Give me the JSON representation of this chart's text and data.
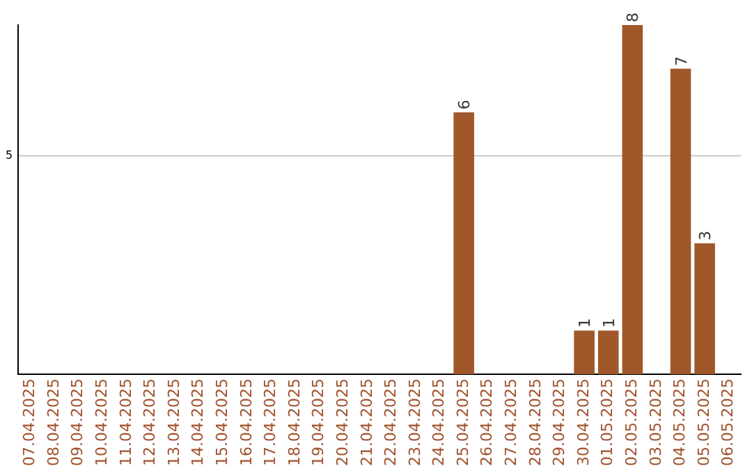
{
  "chart_data": {
    "type": "bar",
    "categories": [
      "07.04.2025",
      "08.04.2025",
      "09.04.2025",
      "10.04.2025",
      "11.04.2025",
      "12.04.2025",
      "13.04.2025",
      "14.04.2025",
      "15.04.2025",
      "16.04.2025",
      "17.04.2025",
      "18.04.2025",
      "19.04.2025",
      "20.04.2025",
      "21.04.2025",
      "22.04.2025",
      "23.04.2025",
      "24.04.2025",
      "25.04.2025",
      "26.04.2025",
      "27.04.2025",
      "28.04.2025",
      "29.04.2025",
      "30.04.2025",
      "01.05.2025",
      "02.05.2025",
      "03.05.2025",
      "04.05.2025",
      "05.05.2025",
      "06.05.2025"
    ],
    "values": [
      null,
      null,
      null,
      null,
      null,
      null,
      null,
      null,
      null,
      null,
      null,
      null,
      null,
      null,
      null,
      null,
      null,
      null,
      6,
      null,
      null,
      null,
      null,
      1,
      1,
      8,
      null,
      7,
      3,
      null
    ],
    "color": "#a0582a",
    "ylim": [
      0,
      8
    ],
    "yticks": [
      5
    ],
    "grid": "y",
    "data_labels": true
  }
}
